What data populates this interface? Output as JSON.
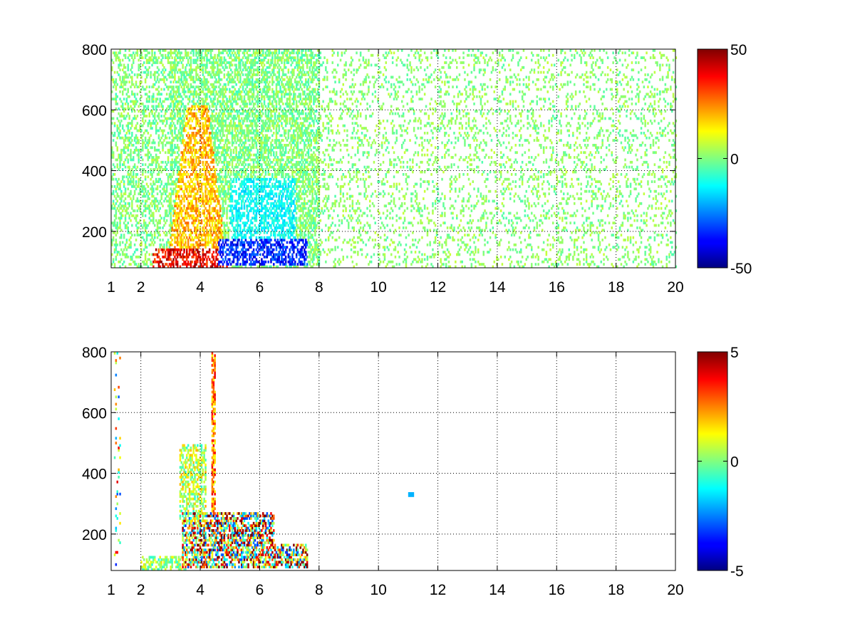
{
  "chart_data": [
    {
      "type": "heatmap",
      "title": "",
      "xlabel": "",
      "ylabel": "",
      "xlim": [
        1,
        20
      ],
      "ylim": [
        80,
        800
      ],
      "xticks": [
        1,
        2,
        4,
        6,
        8,
        10,
        12,
        14,
        16,
        18,
        20
      ],
      "yticks": [
        200,
        400,
        600,
        800
      ],
      "grid": true,
      "grid_style": "dotted",
      "colormap": "jet",
      "colorbar": {
        "range": [
          -50,
          50
        ],
        "ticks": [
          -50,
          0,
          50
        ]
      },
      "missing_color": "#ffffff",
      "features": [
        {
          "description": "strong positive band near y 100-140 from x 2.5 to 5",
          "x": [
            2.5,
            5.0
          ],
          "y": [
            90,
            140
          ],
          "value": 40
        },
        {
          "description": "positive tongue rising to y 600 around x 3.5-4.5",
          "x": [
            3.0,
            4.8
          ],
          "y": [
            150,
            620
          ],
          "value": 20
        },
        {
          "description": "negative band near y 100-160 from x 4.5 to 7.5",
          "x": [
            4.5,
            7.5
          ],
          "y": [
            90,
            180
          ],
          "value": -35
        },
        {
          "description": "moderate negative region x 5-7 up to y 380",
          "x": [
            5.0,
            7.2
          ],
          "y": [
            150,
            380
          ],
          "value": -12
        },
        {
          "description": "sparse near-zero scatter across x 1-20",
          "x": [
            1,
            20
          ],
          "y": [
            80,
            800
          ],
          "value": 0
        }
      ]
    },
    {
      "type": "heatmap",
      "title": "",
      "xlabel": "",
      "ylabel": "",
      "xlim": [
        1,
        20
      ],
      "ylim": [
        80,
        800
      ],
      "xticks": [
        1,
        2,
        4,
        6,
        8,
        10,
        12,
        14,
        16,
        18,
        20
      ],
      "yticks": [
        200,
        400,
        600,
        800
      ],
      "grid": true,
      "grid_style": "dotted",
      "colormap": "jet",
      "colorbar": {
        "range": [
          -5,
          5
        ],
        "ticks": [
          -5,
          0,
          5
        ]
      },
      "missing_color": "#ffffff",
      "features": [
        {
          "description": "near-zero tongue rising to y 500 around x 3.5-4",
          "x": [
            3.3,
            4.2
          ],
          "y": [
            250,
            500
          ],
          "value": 1
        },
        {
          "description": "mixed strong values x 3.5-7.5, y 90-270",
          "x": [
            3.5,
            7.6
          ],
          "y": [
            90,
            270
          ],
          "value": 0
        },
        {
          "description": "positive cluster near y 110-160, x 5-7.5",
          "x": [
            5.0,
            7.6
          ],
          "y": [
            100,
            170
          ],
          "value": 3.5
        },
        {
          "description": "thin vertical streak at x 4.4 up to y 800",
          "x": [
            4.35,
            4.5
          ],
          "y": [
            200,
            800
          ],
          "value": 2
        },
        {
          "description": "isolated point at x 11.1, y 330",
          "x": [
            11.0,
            11.2
          ],
          "y": [
            322,
            338
          ],
          "value": -2
        }
      ]
    }
  ]
}
